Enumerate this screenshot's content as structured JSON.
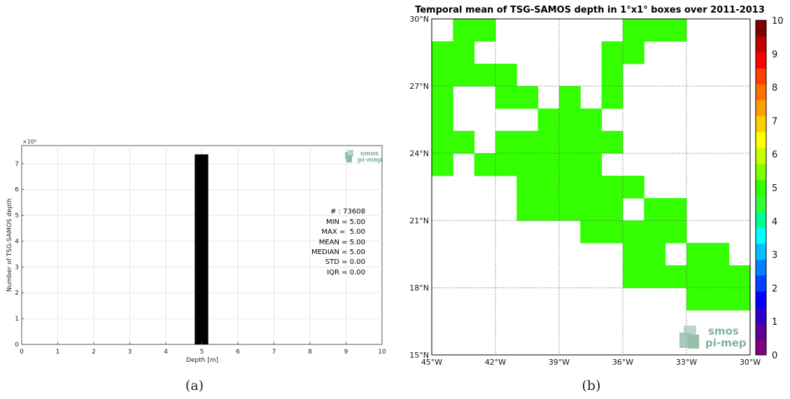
{
  "panel_a": {
    "caption": "(a)",
    "exponent_label": "×10⁴",
    "logo": {
      "line1": "smos",
      "line2": "pi-mep"
    },
    "stats": [
      "# : 73608",
      "MIN = 5.00",
      "MAX =  5.00",
      "MEAN = 5.00",
      "MEDIAN = 5.00",
      "STD = 0.00",
      "IQR = 0.00"
    ]
  },
  "panel_b": {
    "caption": "(b)",
    "logo": {
      "line1": "smos",
      "line2": "pi-mep"
    },
    "colorbar_colors": [
      "#800080",
      "#5a0096",
      "#2a00c8",
      "#0000ff",
      "#0040ff",
      "#0080ff",
      "#00c0ff",
      "#00ffff",
      "#00ff90",
      "#33ff33",
      "#33ff00",
      "#80ff00",
      "#c8ff00",
      "#ffff00",
      "#ffd000",
      "#ffa000",
      "#ff7000",
      "#ff4000",
      "#ff0000",
      "#c00000",
      "#800000"
    ]
  },
  "chart_data": [
    {
      "type": "bar",
      "title": "",
      "xlabel": "Depth [m]",
      "ylabel": "Number of TSG-SAMOS depth",
      "xlim": [
        0,
        10
      ],
      "ylim": [
        0,
        7.7
      ],
      "y_scale_factor": "×10⁴",
      "xticks": [
        0,
        1,
        2,
        3,
        4,
        5,
        6,
        7,
        8,
        9,
        10
      ],
      "yticks": [
        0,
        1,
        2,
        3,
        4,
        5,
        6,
        7
      ],
      "bars": [
        {
          "x": 5.0,
          "value": 7.36
        }
      ],
      "bar_color": "#000000",
      "grid": true
    },
    {
      "type": "heatmap",
      "title": "Temporal mean of TSG-SAMOS depth in 1°x1° boxes over 2011-2013",
      "xlim": [
        -45,
        -30
      ],
      "ylim": [
        15,
        30
      ],
      "xtick_labels": [
        "45°W",
        "42°W",
        "39°W",
        "36°W",
        "33°W",
        "30°W"
      ],
      "ytick_labels": [
        "15°N",
        "18°N",
        "21°N",
        "24°N",
        "27°N",
        "30°N"
      ],
      "colorbar_ticks": [
        "0",
        "1",
        "2",
        "3",
        "4",
        "5",
        "6",
        "7",
        "8",
        "9",
        "10"
      ],
      "colorbar_range": [
        0,
        10
      ],
      "cell_value": 5,
      "cell_color": "#33ff00",
      "grid": true,
      "cells": [
        [
          -44,
          29
        ],
        [
          -43,
          29
        ],
        [
          -36,
          29
        ],
        [
          -35,
          29
        ],
        [
          -34,
          29
        ],
        [
          -45,
          28
        ],
        [
          -44,
          28
        ],
        [
          -37,
          28
        ],
        [
          -36,
          28
        ],
        [
          -45,
          27
        ],
        [
          -44,
          27
        ],
        [
          -43,
          27
        ],
        [
          -42,
          27
        ],
        [
          -37,
          27
        ],
        [
          -45,
          26
        ],
        [
          -42,
          26
        ],
        [
          -41,
          26
        ],
        [
          -39,
          26
        ],
        [
          -37,
          26
        ],
        [
          -45,
          25
        ],
        [
          -40,
          25
        ],
        [
          -39,
          25
        ],
        [
          -38,
          25
        ],
        [
          -45,
          24
        ],
        [
          -44,
          24
        ],
        [
          -42,
          24
        ],
        [
          -41,
          24
        ],
        [
          -40,
          24
        ],
        [
          -39,
          24
        ],
        [
          -38,
          24
        ],
        [
          -37,
          24
        ],
        [
          -45,
          23
        ],
        [
          -42,
          23
        ],
        [
          -41,
          23
        ],
        [
          -40,
          23
        ],
        [
          -39,
          23
        ],
        [
          -38,
          23
        ],
        [
          -43,
          23
        ],
        [
          -41,
          22
        ],
        [
          -40,
          22
        ],
        [
          -39,
          22
        ],
        [
          -38,
          22
        ],
        [
          -37,
          22
        ],
        [
          -36,
          22
        ],
        [
          -41,
          21
        ],
        [
          -40,
          21
        ],
        [
          -39,
          21
        ],
        [
          -38,
          21
        ],
        [
          -37,
          21
        ],
        [
          -35,
          21
        ],
        [
          -34,
          21
        ],
        [
          -38,
          20
        ],
        [
          -37,
          20
        ],
        [
          -36,
          20
        ],
        [
          -35,
          20
        ],
        [
          -34,
          20
        ],
        [
          -36,
          19
        ],
        [
          -35,
          19
        ],
        [
          -33,
          19
        ],
        [
          -32,
          19
        ],
        [
          -36,
          18
        ],
        [
          -35,
          18
        ],
        [
          -34,
          18
        ],
        [
          -33,
          18
        ],
        [
          -32,
          18
        ],
        [
          -31,
          18
        ],
        [
          -33,
          17
        ],
        [
          -32,
          17
        ],
        [
          -31,
          17
        ]
      ]
    }
  ]
}
